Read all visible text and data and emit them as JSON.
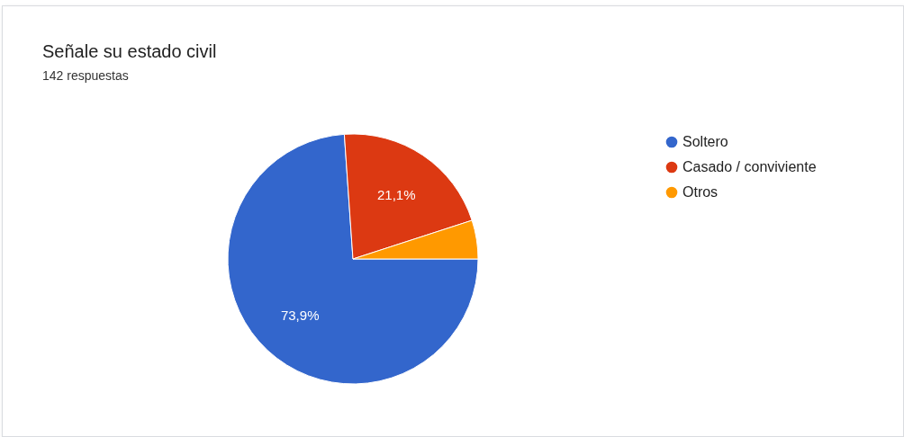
{
  "chart_data": {
    "type": "pie",
    "title": "Señale su estado civil",
    "subtitle": "142 respuestas",
    "categories": [
      "Soltero",
      "Casado / conviviente",
      "Otros"
    ],
    "values": [
      73.9,
      21.1,
      5.0
    ],
    "colors": [
      "#3366cc",
      "#dc3912",
      "#ff9900"
    ],
    "value_labels": [
      "73,9%",
      "21,1%",
      null
    ],
    "legend": "right"
  }
}
